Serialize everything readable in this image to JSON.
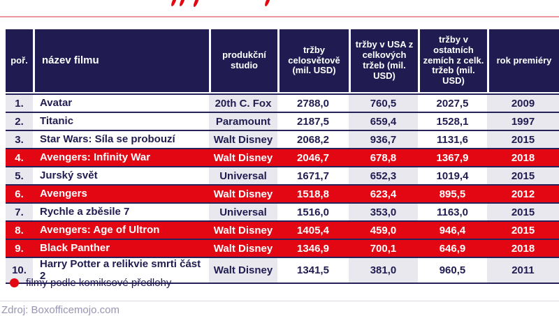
{
  "legend": {
    "label": "filmy podle komiksové předlohy"
  },
  "footer": {
    "source": "Zdroj: Boxofficemojo.com"
  },
  "colors": {
    "header_navy": "#201c51",
    "highlight_red": "#e30613",
    "shaded_column": "#e9e8ef",
    "title_rule_pink": "#ec99a1",
    "source_gray": "#9795b1"
  },
  "chart_data": {
    "type": "table",
    "columns": [
      "poř.",
      "název filmu",
      "produkční studio",
      "tržby celosvětově (mil. USD)",
      "tržby v USA z celkových tržeb (mil. USD)",
      "tržby v ostatních zemích z celk. tržeb (mil. USD)",
      "rok premiéry"
    ],
    "legend_note": "filmy podle komiksové předlohy",
    "rows": [
      {
        "rank": "1.",
        "title": "Avatar",
        "studio": "20th C. Fox",
        "worldwide": "2788,0",
        "usa": "760,5",
        "other": "2027,5",
        "year": "2009",
        "comic_highlight": false
      },
      {
        "rank": "2.",
        "title": "Titanic",
        "studio": "Paramount",
        "worldwide": "2187,5",
        "usa": "659,4",
        "other": "1528,1",
        "year": "1997",
        "comic_highlight": false
      },
      {
        "rank": "3.",
        "title": "Star Wars: Síla se probouzí",
        "studio": "Walt Disney",
        "worldwide": "2068,2",
        "usa": "936,7",
        "other": "1131,6",
        "year": "2015",
        "comic_highlight": false
      },
      {
        "rank": "4.",
        "title": "Avengers: Infinity War",
        "studio": "Walt Disney",
        "worldwide": "2046,7",
        "usa": "678,8",
        "other": "1367,9",
        "year": "2018",
        "comic_highlight": true
      },
      {
        "rank": "5.",
        "title": "Jurský svět",
        "studio": "Universal",
        "worldwide": "1671,7",
        "usa": "652,3",
        "other": "1019,4",
        "year": "2015",
        "comic_highlight": false
      },
      {
        "rank": "6.",
        "title": "Avengers",
        "studio": "Walt Disney",
        "worldwide": "1518,8",
        "usa": "623,4",
        "other": "895,5",
        "year": "2012",
        "comic_highlight": true
      },
      {
        "rank": "7.",
        "title": "Rychle a zběsile 7",
        "studio": "Universal",
        "worldwide": "1516,0",
        "usa": "353,0",
        "other": "1163,0",
        "year": "2015",
        "comic_highlight": false
      },
      {
        "rank": "8.",
        "title": "Avengers: Age of Ultron",
        "studio": "Walt Disney",
        "worldwide": "1405,4",
        "usa": "459,0",
        "other": "946,4",
        "year": "2015",
        "comic_highlight": true
      },
      {
        "rank": "9.",
        "title": "Black Panther",
        "studio": "Walt Disney",
        "worldwide": "1346,9",
        "usa": "700,1",
        "other": "646,9",
        "year": "2018",
        "comic_highlight": true
      },
      {
        "rank": "10.",
        "title": "Harry Potter a relikvie smrti část 2",
        "studio": "Walt Disney",
        "worldwide": "1341,5",
        "usa": "381,0",
        "other": "960,5",
        "year": "2011",
        "comic_highlight": false
      }
    ]
  }
}
